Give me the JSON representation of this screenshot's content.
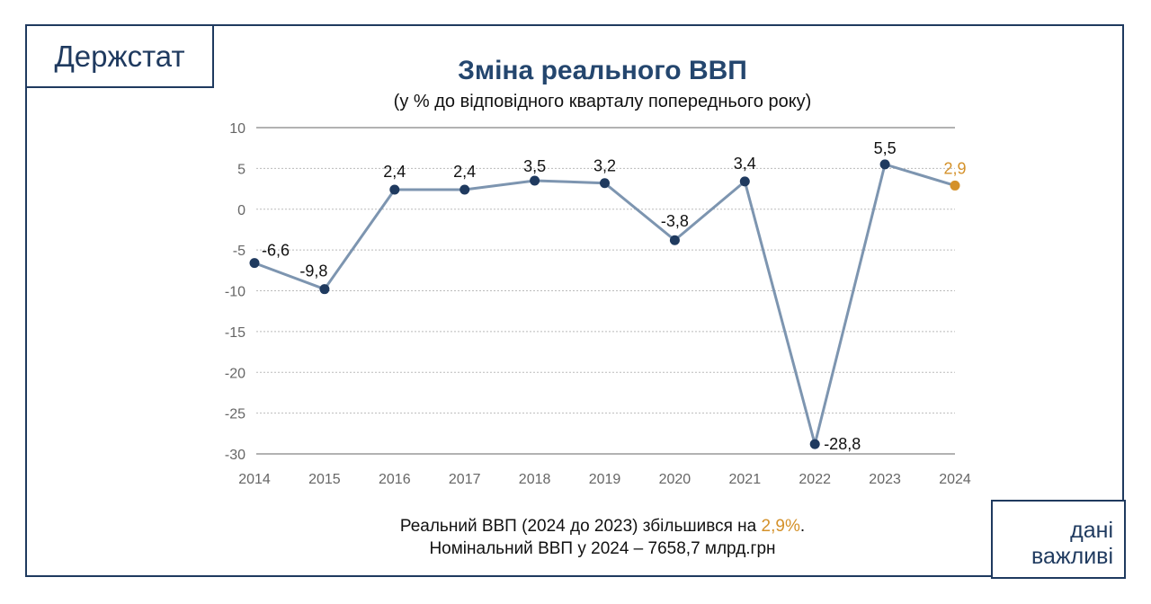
{
  "brand": "Держстат",
  "badge": {
    "line1": "дані",
    "line2": "важливі"
  },
  "colors": {
    "frame": "#1f3a5f",
    "line": "#7d95b0",
    "point": "#1f3a5f",
    "highlight": "#d4912a"
  },
  "footer": {
    "line1_pre": "Реальний ВВП (2024 до 2023) збільшився на ",
    "line1_hl": "2,9%",
    "line1_post": ".",
    "line2": "Номінальний ВВП у 2024 – 7658,7 млрд.грн"
  },
  "chart_data": {
    "type": "line",
    "title": "Зміна реального ВВП",
    "subtitle": "(у % до відповідного кварталу попереднього року)",
    "categories": [
      "2014",
      "2015",
      "2016",
      "2017",
      "2018",
      "2019",
      "2020",
      "2021",
      "2022",
      "2023",
      "2024"
    ],
    "values": [
      -6.6,
      -9.8,
      2.4,
      2.4,
      3.5,
      3.2,
      -3.8,
      3.4,
      -28.8,
      5.5,
      2.9
    ],
    "labels": [
      "-6,6",
      "-9,8",
      "2,4",
      "2,4",
      "3,5",
      "3,2",
      "-3,8",
      "3,4",
      "-28,8",
      "5,5",
      "2,9"
    ],
    "highlight_index": 10,
    "ylim": [
      -30,
      10
    ],
    "yticks": [
      10,
      5,
      0,
      -5,
      -10,
      -15,
      -20,
      -25,
      -30
    ],
    "ytick_labels": [
      "10",
      "5",
      "0",
      "-5",
      "-10",
      "-15",
      "-20",
      "-25",
      "-30"
    ],
    "grid": true
  }
}
